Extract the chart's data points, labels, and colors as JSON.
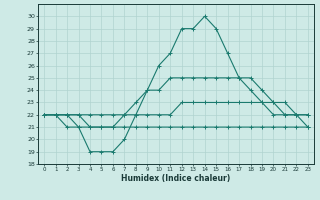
{
  "xlabel": "Humidex (Indice chaleur)",
  "bg_color": "#ceeae6",
  "line_color": "#1a7a6e",
  "grid_color": "#b0d4d0",
  "ylim": [
    18,
    31
  ],
  "xlim": [
    -0.5,
    23.5
  ],
  "yticks": [
    18,
    19,
    20,
    21,
    22,
    23,
    24,
    25,
    26,
    27,
    28,
    29,
    30
  ],
  "xticks": [
    0,
    1,
    2,
    3,
    4,
    5,
    6,
    7,
    8,
    9,
    10,
    11,
    12,
    13,
    14,
    15,
    16,
    17,
    18,
    19,
    20,
    21,
    22,
    23
  ],
  "series": [
    {
      "x": [
        0,
        1,
        2,
        3,
        4,
        5,
        6,
        7,
        8,
        9,
        10,
        11,
        12,
        13,
        14,
        15,
        16,
        17,
        18,
        19,
        20,
        21,
        22,
        23
      ],
      "y": [
        22,
        22,
        22,
        21,
        19,
        19,
        19,
        20,
        22,
        24,
        26,
        27,
        29,
        29,
        30,
        29,
        27,
        25,
        25,
        24,
        23,
        22,
        22,
        21
      ],
      "marker": true
    },
    {
      "x": [
        0,
        1,
        2,
        3,
        4,
        5,
        6,
        7,
        8,
        9,
        10,
        11,
        12,
        13,
        14,
        15,
        16,
        17,
        18,
        19,
        20,
        21,
        22,
        23
      ],
      "y": [
        22,
        22,
        22,
        22,
        21,
        21,
        21,
        22,
        23,
        24,
        24,
        25,
        25,
        25,
        25,
        25,
        25,
        25,
        24,
        23,
        22,
        22,
        22,
        22
      ],
      "marker": true
    },
    {
      "x": [
        0,
        1,
        2,
        3,
        4,
        5,
        6,
        7,
        8,
        9,
        10,
        11,
        12,
        13,
        14,
        15,
        16,
        17,
        18,
        19,
        20,
        21,
        22,
        23
      ],
      "y": [
        22,
        22,
        22,
        22,
        22,
        22,
        22,
        22,
        22,
        22,
        22,
        22,
        23,
        23,
        23,
        23,
        23,
        23,
        23,
        23,
        23,
        23,
        22,
        22
      ],
      "marker": true
    },
    {
      "x": [
        0,
        1,
        2,
        3,
        4,
        5,
        6,
        7,
        8,
        9,
        10,
        11,
        12,
        13,
        14,
        15,
        16,
        17,
        18,
        19,
        20,
        21,
        22,
        23
      ],
      "y": [
        22,
        22,
        21,
        21,
        21,
        21,
        21,
        21,
        21,
        21,
        21,
        21,
        21,
        21,
        21,
        21,
        21,
        21,
        21,
        21,
        21,
        21,
        21,
        21
      ],
      "marker": true
    }
  ]
}
